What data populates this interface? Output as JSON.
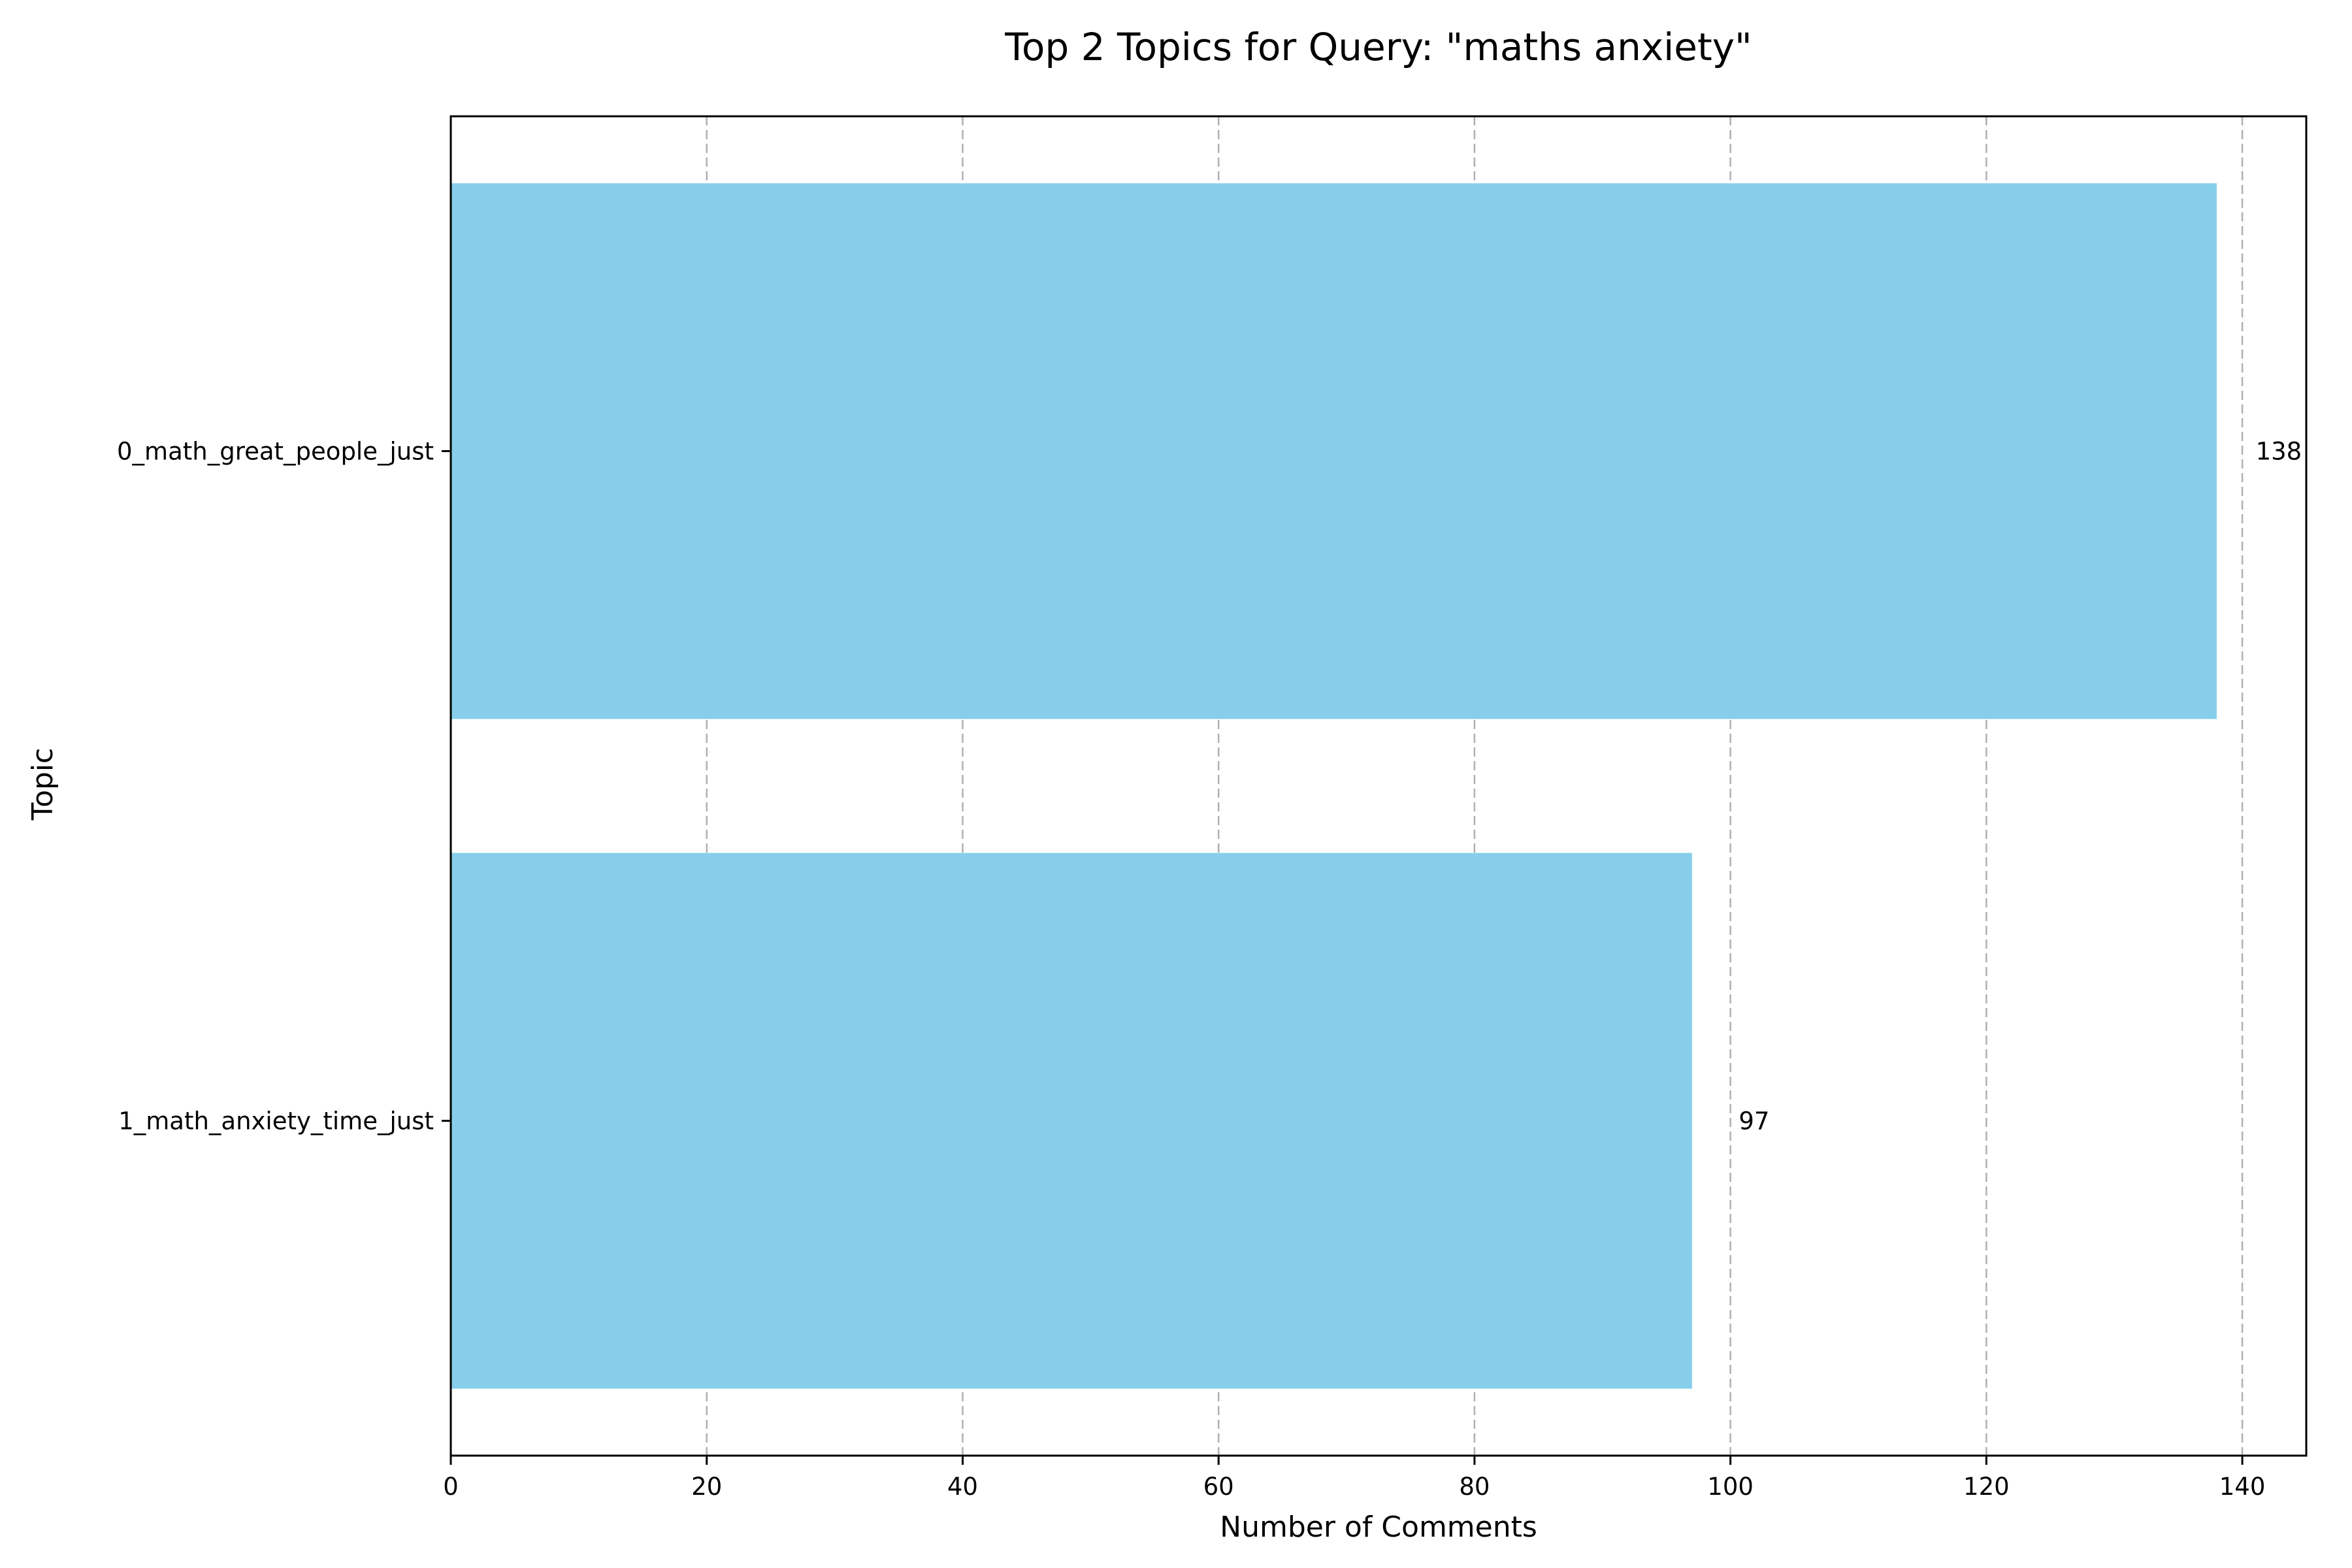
{
  "chart_data": {
    "type": "bar",
    "orientation": "horizontal",
    "title": "Top 2 Topics for Query: \"maths anxiety\"",
    "xlabel": "Number of Comments",
    "ylabel": "Topic",
    "categories": [
      "0_math_great_people_just",
      "1_math_anxiety_time_just"
    ],
    "values": [
      138,
      97
    ],
    "data_labels": [
      "138",
      "97"
    ],
    "xlim": [
      0,
      145
    ],
    "xticks": [
      0,
      20,
      40,
      60,
      80,
      100,
      120,
      140
    ],
    "grid": "x-dashed",
    "bar_color": "#87ceeb"
  }
}
